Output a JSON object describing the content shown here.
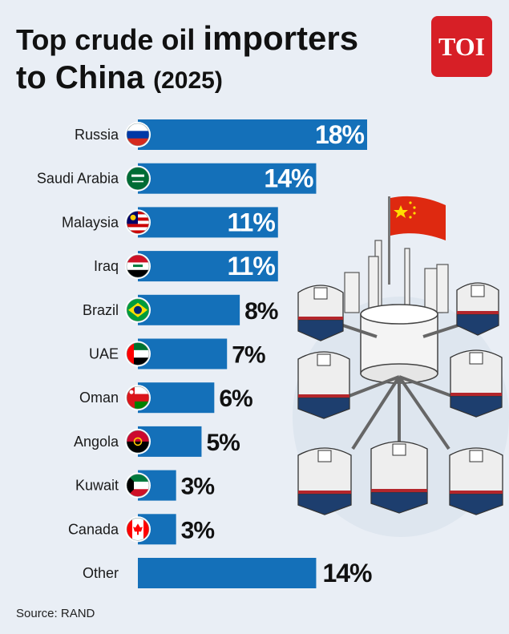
{
  "header": {
    "title_part1": "Top crude oil ",
    "title_emph": "importers",
    "title_part2": "to China ",
    "title_year": "(2025)",
    "logo": "TOI"
  },
  "source": "Source: RAND",
  "colors": {
    "bar": "#1470b9",
    "background": "#e9eef5",
    "logo": "#d71f26"
  },
  "chart_data": {
    "type": "bar",
    "orientation": "horizontal",
    "categories": [
      "Russia",
      "Saudi Arabia",
      "Malaysia",
      "Iraq",
      "Brazil",
      "UAE",
      "Oman",
      "Angola",
      "Kuwait",
      "Canada",
      "Other"
    ],
    "values": [
      18,
      14,
      11,
      11,
      8,
      7,
      6,
      5,
      3,
      3,
      14
    ],
    "value_labels": [
      "18%",
      "14%",
      "11%",
      "11%",
      "8%",
      "7%",
      "6%",
      "5%",
      "3%",
      "3%",
      "14%"
    ],
    "flags": [
      "russia-flag-icon",
      "saudi-arabia-flag-icon",
      "malaysia-flag-icon",
      "iraq-flag-icon",
      "brazil-flag-icon",
      "uae-flag-icon",
      "oman-flag-icon",
      "angola-flag-icon",
      "kuwait-flag-icon",
      "canada-flag-icon",
      ""
    ],
    "unit": "%",
    "grid": false,
    "legend": "none"
  }
}
